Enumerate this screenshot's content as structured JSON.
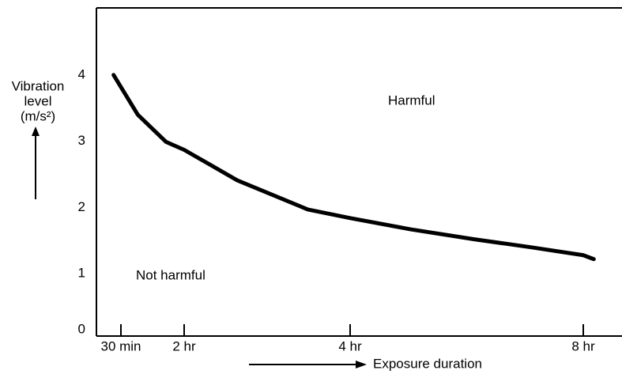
{
  "chart_data": {
    "type": "line",
    "y_label": [
      "Vibration",
      "level",
      "(m/s²)"
    ],
    "x_label": "Exposure duration",
    "annotations": [
      "Harmful",
      "Not harmful"
    ],
    "series": [
      {
        "color": "#000000",
        "x": [
          0.35,
          0.9,
          1.57,
          2,
          2.64,
          3.49,
          4,
          5.04,
          6.13,
          7.1,
          8,
          8.19
        ],
        "values": [
          4.0,
          3.4,
          2.99,
          2.87,
          2.41,
          1.97,
          1.84,
          1.67,
          1.52,
          1.4,
          1.28,
          1.22
        ]
      }
    ],
    "xlim": [
      0,
      8.7
    ],
    "xticks": [
      {
        "value": 0.5,
        "label": "30 min"
      },
      {
        "value": 2,
        "label": "2 hr"
      },
      {
        "value": 4,
        "label": "4 hr"
      },
      {
        "value": 8,
        "label": "8 hr"
      }
    ],
    "ylim": [
      0,
      5
    ],
    "yticks": [
      0,
      1,
      2,
      3,
      4
    ]
  }
}
